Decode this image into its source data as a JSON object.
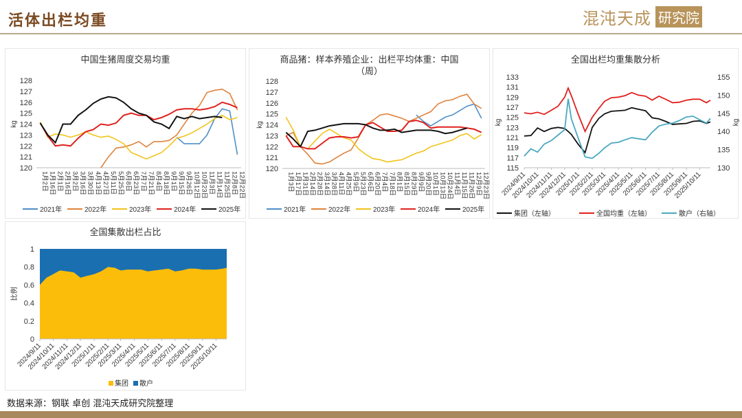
{
  "header": {
    "title": "活体出栏均重",
    "logo_text": "混沌天成",
    "logo_badge": "研究院"
  },
  "source": "数据来源：钢联 卓创 混沌天成研究院整理",
  "colors": {
    "2021": "#4e8fc8",
    "2022": "#e0823a",
    "2023": "#f2c31a",
    "2024": "#e0201e",
    "2025": "#111111",
    "group_line": "#111111",
    "national_line": "#e0201e",
    "scattered_line": "#4aa8c0",
    "group_area": "#fbbd0a",
    "scattered_area": "#1a6fb0",
    "brand": "#7a4a22"
  },
  "chart_data": [
    {
      "type": "line",
      "title": "中国生猪周度交易均重",
      "ylabel": "kg",
      "ylim": [
        120,
        128
      ],
      "yticks": [
        120,
        121,
        122,
        123,
        124,
        125,
        126,
        127,
        128
      ],
      "categories": [
        "1月2日",
        "1月16日",
        "2月1日",
        "2月16日",
        "3月2日",
        "3月16日",
        "3月30日",
        "4月13日",
        "4月27日",
        "5月11日",
        "5月25日",
        "6月8日",
        "6月23日",
        "7月7日",
        "7月21日",
        "8月4日",
        "8月18日",
        "9月1日",
        "9月15日",
        "9月26日",
        "10月12日",
        "10月23日",
        "11月3日",
        "11月14日",
        "11月25日",
        "12月8日",
        "12月22日"
      ],
      "legend": "bottom",
      "series": [
        {
          "name": "2021年",
          "values": [
            null,
            null,
            null,
            null,
            null,
            null,
            null,
            null,
            null,
            null,
            null,
            null,
            null,
            null,
            null,
            null,
            null,
            null,
            122.8,
            122.2,
            122.2,
            122.2,
            123.0,
            124.5,
            125.4,
            125.2,
            121.2
          ]
        },
        {
          "name": "2022年",
          "values": [
            null,
            null,
            null,
            null,
            null,
            null,
            null,
            null,
            120.0,
            121.0,
            121.8,
            121.9,
            122.1,
            122.4,
            121.9,
            122.4,
            122.4,
            122.5,
            123.0,
            124.0,
            125.0,
            125.7,
            126.9,
            127.1,
            127.2,
            126.8,
            125.3
          ]
        },
        {
          "name": "2023年",
          "values": [
            124.2,
            122.8,
            123.1,
            123.0,
            122.8,
            123.0,
            123.3,
            123.0,
            122.8,
            122.9,
            122.6,
            122.2,
            121.4,
            121.1,
            120.8,
            121.1,
            121.4,
            122.0,
            122.7,
            122.9,
            123.2,
            123.6,
            124.0,
            124.5,
            124.8,
            124.4,
            124.6
          ]
        },
        {
          "name": "2024年",
          "values": [
            124.1,
            122.9,
            122.0,
            122.1,
            122.0,
            122.7,
            123.3,
            123.5,
            124.0,
            123.9,
            124.1,
            124.8,
            125.0,
            124.8,
            124.8,
            124.4,
            124.6,
            124.9,
            125.3,
            125.4,
            125.4,
            125.3,
            125.4,
            125.6,
            126.0,
            125.8,
            125.5
          ]
        },
        {
          "name": "2025年",
          "values": [
            124.1,
            123.0,
            122.3,
            124.0,
            124.0,
            124.8,
            125.3,
            125.9,
            126.3,
            126.5,
            126.4,
            126.0,
            125.4,
            125.0,
            124.8,
            124.2,
            124.0,
            123.6,
            124.7,
            124.5,
            124.7,
            124.5,
            124.6,
            124.7,
            124.6,
            null,
            null
          ]
        }
      ]
    },
    {
      "type": "line",
      "title": "商品猪：样本养殖企业：出栏平均体重：中国",
      "subtitle": "（周）",
      "ylabel": "kg",
      "ylim": [
        120,
        128
      ],
      "yticks": [
        120,
        121,
        122,
        123,
        124,
        125,
        126,
        127,
        128
      ],
      "categories": [
        "1月3日",
        "1月17日",
        "1月31日",
        "2月14日",
        "2月28日",
        "3月14日",
        "3月28日",
        "4月11日",
        "4月25日",
        "5月9日",
        "5月23日",
        "6月6日",
        "6月20日",
        "7月4日",
        "7月18日",
        "8月1日",
        "8月15日",
        "8月29日",
        "9月9日",
        "9月20日",
        "10月1日",
        "10月13日",
        "10月24日",
        "11月4日",
        "11月15日",
        "11月26日",
        "12月9日",
        "12月23日"
      ],
      "legend": "bottom",
      "series": [
        {
          "name": "2021年",
          "values": [
            null,
            null,
            null,
            null,
            null,
            null,
            null,
            null,
            null,
            null,
            null,
            null,
            null,
            null,
            null,
            null,
            null,
            null,
            124.9,
            124.3,
            123.9,
            124.3,
            124.7,
            124.9,
            125.3,
            125.7,
            125.9,
            124.6
          ]
        },
        {
          "name": "2022年",
          "values": [
            123.0,
            123.3,
            122.0,
            121.3,
            120.5,
            120.4,
            120.6,
            121.0,
            121.4,
            121.7,
            122.8,
            124.0,
            124.4,
            124.9,
            125.0,
            124.8,
            124.6,
            124.3,
            124.6,
            124.9,
            125.2,
            125.9,
            126.2,
            126.3,
            126.6,
            126.8,
            125.9,
            125.5
          ]
        },
        {
          "name": "2023年",
          "values": [
            124.7,
            123.5,
            122.0,
            121.8,
            122.5,
            123.2,
            123.6,
            123.2,
            122.8,
            122.6,
            121.8,
            121.3,
            120.9,
            120.8,
            120.6,
            120.7,
            120.8,
            121.1,
            121.4,
            121.6,
            122.0,
            122.2,
            122.4,
            122.6,
            123.0,
            123.2,
            122.7,
            123.1
          ]
        },
        {
          "name": "2024年",
          "values": [
            123.0,
            122.0,
            122.0,
            121.8,
            121.8,
            122.3,
            122.8,
            122.9,
            122.9,
            122.8,
            122.9,
            124.0,
            124.2,
            123.8,
            123.4,
            123.4,
            123.5,
            124.3,
            124.4,
            124.2,
            123.7,
            123.8,
            123.8,
            123.8,
            123.8,
            123.7,
            123.6,
            123.3
          ]
        },
        {
          "name": "2025年",
          "values": [
            123.3,
            122.7,
            122.0,
            123.4,
            123.5,
            123.7,
            123.9,
            124.0,
            124.1,
            124.1,
            124.1,
            124.0,
            123.7,
            123.5,
            123.5,
            123.6,
            123.3,
            123.4,
            123.5,
            123.5,
            123.5,
            123.4,
            123.2,
            123.3,
            123.5,
            123.7,
            null,
            null
          ]
        }
      ]
    },
    {
      "type": "line",
      "title": "全国出栏均重集散分析",
      "ylabel": "kg",
      "y2label": "kg",
      "ylim": [
        115,
        133
      ],
      "yticks": [
        115,
        117,
        119,
        121,
        123,
        125,
        127,
        129,
        131,
        133
      ],
      "y2lim": [
        130,
        155
      ],
      "y2ticks": [
        130,
        135,
        140,
        145,
        150,
        155
      ],
      "xticks": [
        "2024/9/11",
        "2024/10/11",
        "2024/11/11",
        "2024/12/11",
        "2025/1/11",
        "2025/2/11",
        "2025/3/11",
        "2025/4/11",
        "2025/5/11",
        "2025/6/11",
        "2025/7/11",
        "2025/8/11",
        "2025/9/11",
        "2025/10/11"
      ],
      "x": [
        "2024/9/11",
        "2024/9/26",
        "2024/10/11",
        "2024/10/26",
        "2024/11/11",
        "2024/11/26",
        "2024/12/11",
        "2024/12/19",
        "2024/12/26",
        "2025/1/11",
        "2025/1/26",
        "2025/2/11",
        "2025/2/26",
        "2025/3/11",
        "2025/3/26",
        "2025/4/11",
        "2025/4/26",
        "2025/5/11",
        "2025/5/26",
        "2025/6/11",
        "2025/6/26",
        "2025/7/11",
        "2025/7/26",
        "2025/8/11",
        "2025/8/26",
        "2025/9/11",
        "2025/9/26",
        "2025/10/11",
        "2025/10/26",
        "2025/11/4"
      ],
      "legend": "bottom",
      "series": [
        {
          "name": "集团（左轴）",
          "axis": "left",
          "values": [
            121.3,
            121.4,
            122.9,
            122.2,
            122.8,
            123.0,
            122.8,
            122.2,
            121.6,
            119.6,
            118.0,
            123.0,
            124.8,
            125.7,
            126.2,
            126.3,
            126.4,
            126.9,
            126.6,
            126.3,
            124.9,
            124.7,
            124.2,
            123.6,
            123.7,
            123.8,
            124.2,
            124.3,
            123.8,
            124.1
          ]
        },
        {
          "name": "全国均重（左轴）",
          "axis": "left",
          "values": [
            125.9,
            125.7,
            126.0,
            125.6,
            126.4,
            127.2,
            129.0,
            130.8,
            129.3,
            125.5,
            122.2,
            125.0,
            126.8,
            128.2,
            128.9,
            129.0,
            129.3,
            129.9,
            129.4,
            129.2,
            128.4,
            129.2,
            128.6,
            127.9,
            128.0,
            128.4,
            128.6,
            128.6,
            127.9,
            128.4
          ]
        },
        {
          "name": "散户（右轴）",
          "axis": "right",
          "values": [
            133.2,
            135.2,
            134.3,
            136.5,
            137.5,
            139.0,
            140.5,
            149.0,
            143.5,
            138.0,
            133.0,
            132.6,
            134.0,
            135.5,
            136.8,
            137.0,
            137.7,
            138.3,
            138.0,
            137.7,
            139.8,
            141.5,
            142.0,
            142.3,
            143.0,
            144.0,
            144.2,
            143.2,
            142.3,
            143.6
          ]
        }
      ]
    },
    {
      "type": "area",
      "stacked": true,
      "title": "全国集散出栏占比",
      "ylabel": "比例",
      "ylim": [
        0,
        1
      ],
      "yticks": [
        0,
        0.2,
        0.4,
        0.6,
        0.8,
        1
      ],
      "xticks": [
        "2024/9/11",
        "2024/10/11",
        "2024/11/11",
        "2024/12/11",
        "2025/1/11",
        "2025/2/11",
        "2025/3/11",
        "2025/4/11",
        "2025/5/11",
        "2025/6/11",
        "2025/7/11",
        "2025/8/11",
        "2025/9/11",
        "2025/10/11"
      ],
      "x": [
        "2024/9/11",
        "2024/9/26",
        "2024/10/11",
        "2024/10/26",
        "2024/11/11",
        "2024/11/26",
        "2024/12/11",
        "2024/12/26",
        "2025/1/11",
        "2025/1/26",
        "2025/2/11",
        "2025/2/26",
        "2025/3/11",
        "2025/3/26",
        "2025/4/11",
        "2025/4/26",
        "2025/5/11",
        "2025/5/26",
        "2025/6/11",
        "2025/6/26",
        "2025/7/11",
        "2025/7/26",
        "2025/8/11",
        "2025/8/26",
        "2025/9/11",
        "2025/9/26",
        "2025/10/11",
        "2025/10/26",
        "2025/11/4"
      ],
      "legend": "bottom",
      "series": [
        {
          "name": "集团",
          "values": [
            0.6,
            0.68,
            0.72,
            0.76,
            0.75,
            0.74,
            0.68,
            0.7,
            0.72,
            0.75,
            0.8,
            0.79,
            0.76,
            0.77,
            0.77,
            0.77,
            0.75,
            0.76,
            0.77,
            0.78,
            0.75,
            0.76,
            0.78,
            0.78,
            0.77,
            0.77,
            0.77,
            0.78,
            0.79
          ]
        },
        {
          "name": "散户",
          "values": [
            0.4,
            0.32,
            0.28,
            0.24,
            0.25,
            0.26,
            0.32,
            0.3,
            0.28,
            0.25,
            0.2,
            0.21,
            0.24,
            0.23,
            0.23,
            0.23,
            0.25,
            0.24,
            0.23,
            0.22,
            0.25,
            0.24,
            0.22,
            0.22,
            0.23,
            0.23,
            0.23,
            0.22,
            0.21
          ]
        }
      ]
    }
  ]
}
